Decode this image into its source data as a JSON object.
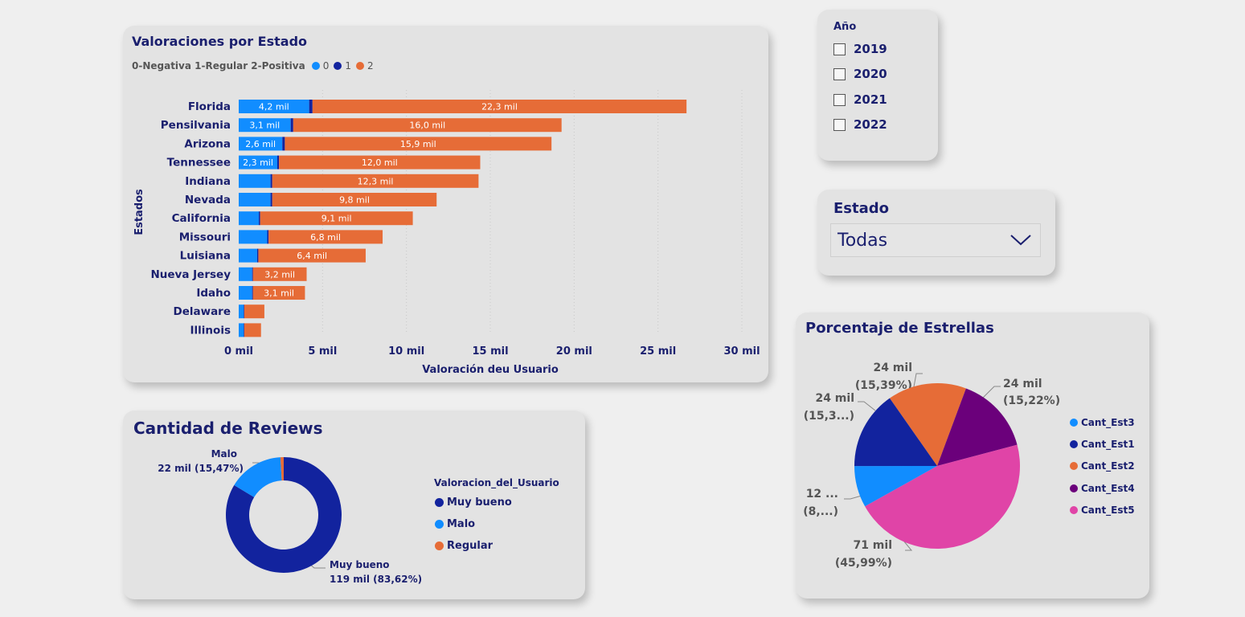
{
  "bar_card": {
    "title": "Valoraciones por Estado",
    "legend_prefix": "0-Negativa 1-Regular 2-Positiva",
    "legend": [
      {
        "label": "0",
        "color": "#118dff"
      },
      {
        "label": "1",
        "color": "#12239e"
      },
      {
        "label": "2",
        "color": "#e66c37"
      }
    ],
    "ylabel": "Estados",
    "xlabel": "Valoración deu Usuario"
  },
  "year_slicer": {
    "title": "Año",
    "options": [
      "2019",
      "2020",
      "2021",
      "2022"
    ]
  },
  "estado_slicer": {
    "title": "Estado",
    "selected": "Todas"
  },
  "donut_card": {
    "title": "Cantidad de Reviews",
    "legend_title": "Valoracion_del_Usuario",
    "legend": [
      {
        "label": "Muy bueno",
        "color": "#12239e"
      },
      {
        "label": "Malo",
        "color": "#118dff"
      },
      {
        "label": "Regular",
        "color": "#e66c37"
      }
    ],
    "label_malo_name": "Malo",
    "label_malo_value": "22 mil (15,47%)",
    "label_muybueno_name": "Muy bueno",
    "label_muybueno_value": "119 mil (83,62%)"
  },
  "pie_card": {
    "title": "Porcentaje de Estrellas",
    "legend": [
      {
        "label": "Cant_Est3",
        "color": "#118dff"
      },
      {
        "label": "Cant_Est1",
        "color": "#12239e"
      },
      {
        "label": "Cant_Est2",
        "color": "#e66c37"
      },
      {
        "label": "Cant_Est4",
        "color": "#6b007b"
      },
      {
        "label": "Cant_Est5",
        "color": "#e044a7"
      }
    ],
    "labels": [
      {
        "line1": "24 mil",
        "line2": "(15,39%)"
      },
      {
        "line1": "24 mil",
        "line2": "(15,22%)"
      },
      {
        "line1": "24 mil",
        "line2": "(15,3...)"
      },
      {
        "line1": "12 ...",
        "line2": "(8,...)"
      },
      {
        "line1": "71 mil",
        "line2": "(45,99%)"
      }
    ]
  },
  "chart_data": [
    {
      "type": "bar",
      "orientation": "horizontal",
      "stacked": true,
      "title": "Valoraciones por Estado",
      "xlabel": "Valoración deu Usuario",
      "ylabel": "Estados",
      "xlim": [
        0,
        30000
      ],
      "x_ticks": [
        "0 mil",
        "5 mil",
        "10 mil",
        "15 mil",
        "20 mil",
        "25 mil",
        "30 mil"
      ],
      "legend_position": "top-left",
      "grid": true,
      "categories": [
        "Florida",
        "Pensilvania",
        "Arizona",
        "Tennessee",
        "Indiana",
        "Nevada",
        "California",
        "Missouri",
        "Luisiana",
        "Nueva Jersey",
        "Idaho",
        "Delaware",
        "Illinois"
      ],
      "series": [
        {
          "name": "0",
          "color": "#118dff",
          "values": [
            4200,
            3100,
            2600,
            2300,
            1900,
            1900,
            1200,
            1700,
            1100,
            800,
            800,
            300,
            300
          ]
        },
        {
          "name": "1",
          "color": "#12239e",
          "values": [
            200,
            150,
            150,
            100,
            100,
            100,
            80,
            80,
            70,
            50,
            50,
            30,
            30
          ]
        },
        {
          "name": "2",
          "color": "#e66c37",
          "values": [
            22300,
            16000,
            15900,
            12000,
            12300,
            9800,
            9100,
            6800,
            6400,
            3200,
            3100,
            1200,
            1000
          ]
        }
      ],
      "data_labels": {
        "0": [
          "4,2 mil",
          "3,1 mil",
          "2,6 mil",
          "2,3 mil",
          "",
          "",
          "",
          "",
          "",
          "",
          "",
          "",
          ""
        ],
        "2": [
          "22,3 mil",
          "16,0 mil",
          "15,9 mil",
          "12,0 mil",
          "12,3 mil",
          "9,8 mil",
          "9,1 mil",
          "6,8 mil",
          "6,4 mil",
          "3,2 mil",
          "3,1 mil",
          "",
          ""
        ]
      }
    },
    {
      "type": "pie",
      "variant": "donut",
      "title": "Cantidad de Reviews",
      "legend_title": "Valoracion_del_Usuario",
      "categories": [
        "Muy bueno",
        "Malo",
        "Regular"
      ],
      "values": [
        83.62,
        15.47,
        0.91
      ],
      "colors": [
        "#12239e",
        "#118dff",
        "#e66c37"
      ]
    },
    {
      "type": "pie",
      "title": "Porcentaje de Estrellas",
      "categories": [
        "Cant_Est2",
        "Cant_Est4",
        "Cant_Est5",
        "Cant_Est3",
        "Cant_Est1"
      ],
      "values": [
        15.39,
        15.22,
        45.99,
        8.1,
        15.3
      ],
      "colors": [
        "#e66c37",
        "#6b007b",
        "#e044a7",
        "#118dff",
        "#12239e"
      ]
    }
  ]
}
